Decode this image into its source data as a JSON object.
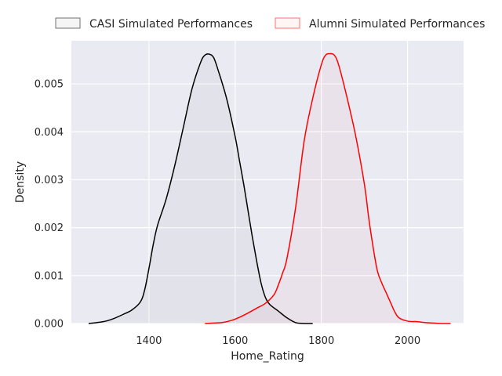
{
  "chart_data": {
    "type": "line",
    "title": "",
    "xlabel": "Home_Rating",
    "ylabel": "Density",
    "xlim": [
      1220,
      2130
    ],
    "ylim": [
      0,
      0.0059
    ],
    "xticks": [
      1400,
      1600,
      1800,
      2000
    ],
    "yticks": [
      0.0,
      0.001,
      0.002,
      0.003,
      0.004,
      0.005
    ],
    "ytick_labels": [
      "0.000",
      "0.001",
      "0.002",
      "0.003",
      "0.004",
      "0.005"
    ],
    "grid": true,
    "background": "#eaeaf2",
    "legend_position": "top-center",
    "series": [
      {
        "name": "CASI Simulated Performances",
        "color": "#000000",
        "x": [
          1260,
          1280,
          1300,
          1320,
          1340,
          1360,
          1380,
          1390,
          1400,
          1410,
          1420,
          1440,
          1460,
          1480,
          1500,
          1520,
          1530,
          1540,
          1550,
          1560,
          1580,
          1600,
          1610,
          1620,
          1630,
          1640,
          1650,
          1660,
          1670,
          1680,
          1700,
          1720,
          1740,
          1760,
          1780
        ],
        "y": [
          0.0,
          2e-05,
          5e-05,
          0.00011,
          0.00019,
          0.00028,
          0.00045,
          0.0007,
          0.00115,
          0.00165,
          0.00205,
          0.0026,
          0.0033,
          0.0041,
          0.0049,
          0.00545,
          0.0056,
          0.00562,
          0.00555,
          0.0053,
          0.0047,
          0.0039,
          0.0034,
          0.0029,
          0.00235,
          0.0018,
          0.0013,
          0.00085,
          0.00055,
          0.0004,
          0.00026,
          0.00012,
          2e-05,
          0.0,
          0.0
        ]
      },
      {
        "name": "Alumni Simulated Performances",
        "color": "#ff0000",
        "x": [
          1530,
          1550,
          1570,
          1590,
          1610,
          1630,
          1650,
          1670,
          1690,
          1700,
          1710,
          1720,
          1740,
          1760,
          1780,
          1800,
          1810,
          1820,
          1830,
          1840,
          1860,
          1880,
          1900,
          1910,
          1920,
          1930,
          1940,
          1950,
          1960,
          1970,
          1980,
          2000,
          2020,
          2040,
          2060,
          2080,
          2100
        ],
        "y": [
          0.0,
          1e-05,
          2e-05,
          6e-05,
          0.00013,
          0.00022,
          0.00032,
          0.00042,
          0.0006,
          0.0008,
          0.00105,
          0.00135,
          0.0024,
          0.0038,
          0.0047,
          0.0054,
          0.0056,
          0.00563,
          0.0056,
          0.0054,
          0.0047,
          0.0039,
          0.0029,
          0.0022,
          0.0016,
          0.0011,
          0.00085,
          0.00065,
          0.00045,
          0.00025,
          0.00012,
          5e-05,
          4e-05,
          2e-05,
          1e-05,
          0.0,
          0.0
        ]
      }
    ]
  }
}
